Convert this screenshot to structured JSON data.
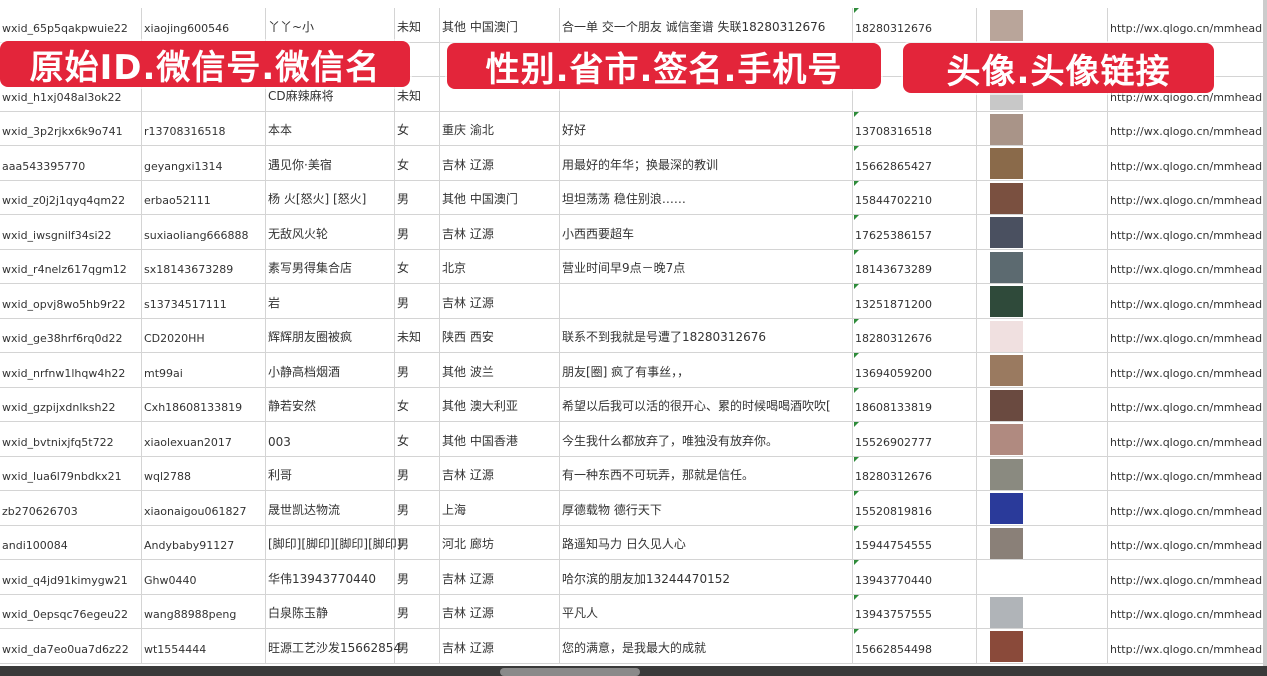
{
  "overlays": {
    "label_1": "原始ID.微信号.微信名",
    "label_2": "性别.省市.签名.手机号",
    "label_3": "头像.头像链接",
    "color": "#e3253a"
  },
  "rows": [
    {
      "id": "wxid_65p5qakpwuie22",
      "wechat": "xiaojing600546",
      "name": "丫丫~小",
      "gender": "未知",
      "region": "其他 中国澳门",
      "signature": "合一单 交一个朋友 诚信奎谱 失联18280312676",
      "phone": "18280312676",
      "avatar_color": "#b9a59a",
      "url": "http://wx.qlogo.cn/mmhead"
    },
    {
      "id": "",
      "wechat": "",
      "name": "",
      "gender": "",
      "region": "",
      "signature": "",
      "phone": "",
      "avatar_color": "#5a6f9a",
      "url": ""
    },
    {
      "id": "wxid_h1xj048al3ok22",
      "wechat": "",
      "name": "CD麻辣麻将",
      "gender": "未知",
      "region": "",
      "signature": "",
      "phone": "",
      "avatar_color": "#c8c8c8",
      "url": "http://wx.qlogo.cn/mmhead"
    },
    {
      "id": "wxid_3p2rjkx6k9o741",
      "wechat": "r13708316518",
      "name": "本本",
      "gender": "女",
      "region": "重庆 渝北",
      "signature": "好好",
      "phone": "13708316518",
      "avatar_color": "#a99488",
      "url": "http://wx.qlogo.cn/mmhead"
    },
    {
      "id": "aaa543395770",
      "wechat": "geyangxi1314",
      "name": "遇见你·美宿",
      "gender": "女",
      "region": "吉林 辽源",
      "signature": "用最好的年华；换最深的教训",
      "phone": "15662865427",
      "avatar_color": "#8a6a4a",
      "url": "http://wx.qlogo.cn/mmhead"
    },
    {
      "id": "wxid_z0j2j1qyq4qm22",
      "wechat": "erbao52111",
      "name": "杨 火[怒火] [怒火]",
      "gender": "男",
      "region": "其他 中国澳门",
      "signature": "坦坦荡荡 稳住别浪……",
      "phone": "15844702210",
      "avatar_color": "#7a5040",
      "url": "http://wx.qlogo.cn/mmhead"
    },
    {
      "id": "wxid_iwsgnilf34si22",
      "wechat": "suxiaoliang666888",
      "name": "无敌风火轮",
      "gender": "男",
      "region": "吉林 辽源",
      "signature": "小西西要超车",
      "phone": "17625386157",
      "avatar_color": "#4a5060",
      "url": "http://wx.qlogo.cn/mmhead"
    },
    {
      "id": "wxid_r4nelz617qgm12",
      "wechat": "sx18143673289",
      "name": "素写男得集合店",
      "gender": "女",
      "region": "北京",
      "signature": "营业时间早9点－晚7点",
      "phone": "18143673289",
      "avatar_color": "#5c6a70",
      "url": "http://wx.qlogo.cn/mmhead"
    },
    {
      "id": "wxid_opvj8wo5hb9r22",
      "wechat": "s13734517111",
      "name": "岩",
      "gender": "男",
      "region": "吉林 辽源",
      "signature": "",
      "phone": "13251871200",
      "avatar_color": "#2f4a3a",
      "url": "http://wx.qlogo.cn/mmhead"
    },
    {
      "id": "wxid_ge38hrf6rq0d22",
      "wechat": "CD2020HH",
      "name": "辉辉朋友圈被疯",
      "gender": "未知",
      "region": "陕西 西安",
      "signature": "联系不到我就是号遭了18280312676",
      "phone": "18280312676",
      "avatar_color": "#f0e0e0",
      "url": "http://wx.qlogo.cn/mmhead"
    },
    {
      "id": "wxid_nrfnw1lhqw4h22",
      "wechat": "mt99ai",
      "name": "小静高档烟酒",
      "gender": "男",
      "region": "其他 波兰",
      "signature": "朋友[圈] 疯了有事丝，，",
      "phone": "13694059200",
      "avatar_color": "#9a7a60",
      "url": "http://wx.qlogo.cn/mmhead"
    },
    {
      "id": "wxid_gzpijxdnlksh22",
      "wechat": "Cxh18608133819",
      "name": "静若安然",
      "gender": "女",
      "region": "其他 澳大利亚",
      "signature": "希望以后我可以活的很开心、累的时候喝喝酒吹吹[",
      "phone": "18608133819",
      "avatar_color": "#6a4a40",
      "url": "http://wx.qlogo.cn/mmhead"
    },
    {
      "id": "wxid_bvtnixjfq5t722",
      "wechat": "xiaolexuan2017",
      "name": "003",
      "gender": "女",
      "region": "其他 中国香港",
      "signature": "今生我什么都放弃了，唯独没有放弃你。",
      "phone": "15526902777",
      "avatar_color": "#b08a80",
      "url": "http://wx.qlogo.cn/mmhead"
    },
    {
      "id": "wxid_lua6l79nbdkx21",
      "wechat": "wql2788",
      "name": "利哥",
      "gender": "男",
      "region": "吉林 辽源",
      "signature": "有一种东西不可玩弄，那就是信任。",
      "phone": "18280312676",
      "avatar_color": "#8a8a80",
      "url": "http://wx.qlogo.cn/mmhead"
    },
    {
      "id": "zb270626703",
      "wechat": "xiaonaigou061827",
      "name": "晟世凯达物流",
      "gender": "男",
      "region": "上海",
      "signature": "厚德载物 德行天下",
      "phone": "15520819816",
      "avatar_color": "#2a3a9a",
      "url": "http://wx.qlogo.cn/mmhead"
    },
    {
      "id": "andi100084",
      "wechat": "Andybaby91127",
      "name": "[脚印][脚印][脚印][脚印]",
      "gender": "男",
      "region": "河北 廊坊",
      "signature": "路遥知马力 日久见人心",
      "phone": "15944754555",
      "avatar_color": "#8a8078",
      "url": "http://wx.qlogo.cn/mmhead"
    },
    {
      "id": "wxid_q4jd91kimygw21",
      "wechat": "Ghw0440",
      "name": "华伟13943770440",
      "gender": "男",
      "region": "吉林 辽源",
      "signature": "哈尔滨的朋友加13244470152",
      "phone": "13943770440",
      "avatar_color": "#ffffff",
      "url": "http://wx.qlogo.cn/mmhead"
    },
    {
      "id": "wxid_0epsqc76egeu22",
      "wechat": "wang88988peng",
      "name": "白泉陈玉静",
      "gender": "男",
      "region": "吉林 辽源",
      "signature": "平凡人",
      "phone": "13943757555",
      "avatar_color": "#b0b4b8",
      "url": "http://wx.qlogo.cn/mmhead"
    },
    {
      "id": "wxid_da7eo0ua7d6z22",
      "wechat": "wt1554444",
      "name": "旺源工艺沙发15662854",
      "gender": "男",
      "region": "吉林 辽源",
      "signature": "您的满意，是我最大的成就",
      "phone": "15662854498",
      "avatar_color": "#8a4a3a",
      "url": "http://wx.qlogo.cn/mmhead"
    }
  ]
}
